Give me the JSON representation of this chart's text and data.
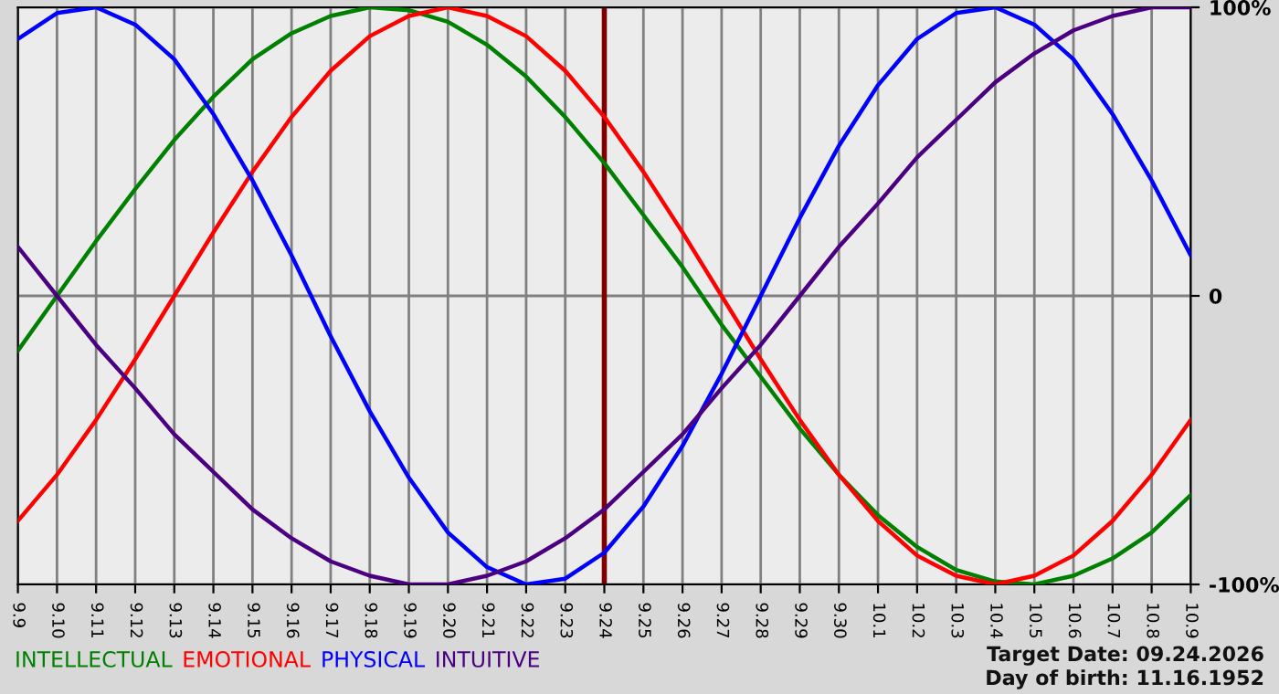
{
  "chart_data": {
    "type": "line",
    "categories": [
      "9.9",
      "9.10",
      "9.11",
      "9.12",
      "9.13",
      "9.14",
      "9.15",
      "9.16",
      "9.17",
      "9.18",
      "9.19",
      "9.20",
      "9.21",
      "9.22",
      "9.23",
      "9.24",
      "9.25",
      "9.26",
      "9.27",
      "9.28",
      "9.29",
      "9.30",
      "10.1",
      "10.2",
      "10.3",
      "10.4",
      "10.5",
      "10.6",
      "10.7",
      "10.8",
      "10.9"
    ],
    "series": [
      {
        "name": "INTELLECTUAL",
        "color": "#008000",
        "values": [
          -19,
          0,
          19,
          37,
          54,
          69,
          82,
          91,
          97,
          100,
          99,
          95,
          87,
          76,
          62,
          46,
          28,
          10,
          -10,
          -28,
          -46,
          -62,
          -76,
          -87,
          -95,
          -99,
          -100,
          -97,
          -91,
          -82,
          -69
        ]
      },
      {
        "name": "EMOTIONAL",
        "color": "#ff0000",
        "values": [
          -78,
          -62,
          -43,
          -22,
          0,
          22,
          43,
          62,
          78,
          90,
          97,
          100,
          97,
          90,
          78,
          62,
          43,
          22,
          0,
          -22,
          -43,
          -62,
          -78,
          -90,
          -97,
          -100,
          -97,
          -90,
          -78,
          -62,
          -43
        ]
      },
      {
        "name": "PHYSICAL",
        "color": "#0000ff",
        "values": [
          89,
          98,
          100,
          94,
          82,
          63,
          40,
          14,
          -14,
          -40,
          -63,
          -82,
          -94,
          -100,
          -98,
          -89,
          -73,
          -52,
          -27,
          0,
          27,
          52,
          73,
          89,
          98,
          100,
          94,
          82,
          63,
          40,
          14
        ]
      },
      {
        "name": "INTUITIVE",
        "color": "#4b0082",
        "values": [
          17,
          0,
          -17,
          -32,
          -48,
          -61,
          -74,
          -84,
          -92,
          -97,
          -100,
          -100,
          -97,
          -92,
          -84,
          -74,
          -61,
          -48,
          -32,
          -17,
          0,
          17,
          32,
          48,
          61,
          74,
          84,
          92,
          97,
          100,
          100
        ]
      }
    ],
    "ylim": [
      -100,
      100
    ],
    "yticks": [
      {
        "value": 100,
        "label": "100%"
      },
      0,
      {
        "value": -100,
        "label": "-100%"
      }
    ],
    "ref_lines": [
      {
        "axis": "x",
        "value": "9.24",
        "color": "#800000"
      }
    ],
    "annotations": [
      "Target Date: 09.24.2026",
      "Day of birth: 11.16.1952"
    ],
    "grid": true
  }
}
